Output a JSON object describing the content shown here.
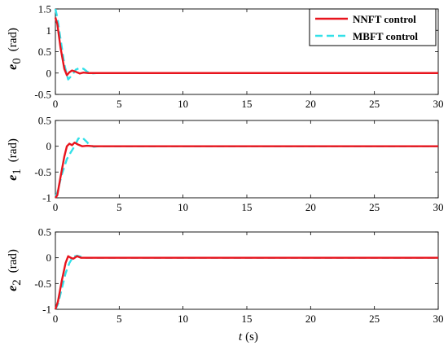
{
  "chart_data": [
    {
      "type": "line",
      "ylabel_symbol": "e",
      "ylabel_subscript": "0",
      "ylabel_unit": "(rad)",
      "xlim": [
        0,
        30
      ],
      "ylim": [
        -0.5,
        1.5
      ],
      "xticks": [
        "0",
        "5",
        "10",
        "15",
        "20",
        "25",
        "30"
      ],
      "yticks": [
        "-0.5",
        "0",
        "0.5",
        "1",
        "1.5"
      ],
      "grid": false,
      "legend": {
        "placement": "top-right",
        "entries": [
          "NNFT control",
          "MBFT control"
        ]
      },
      "series": [
        {
          "name": "NNFT control",
          "color": "#e8141d",
          "style": "solid",
          "x": [
            0,
            0.15,
            0.4,
            0.7,
            0.9,
            1.1,
            1.3,
            1.6,
            1.9,
            2.2,
            2.6,
            3.0,
            30
          ],
          "y": [
            1.3,
            1.15,
            0.6,
            0.1,
            -0.05,
            0.02,
            0.06,
            0.03,
            -0.01,
            0.01,
            0.0,
            0.0,
            0.0
          ]
        },
        {
          "name": "MBFT control",
          "color": "#33e0e8",
          "style": "dashed",
          "x": [
            0,
            0.15,
            0.4,
            0.7,
            1.0,
            1.3,
            1.6,
            1.9,
            2.2,
            2.5,
            2.8,
            3.2,
            30
          ],
          "y": [
            1.5,
            1.3,
            0.8,
            0.2,
            -0.15,
            -0.05,
            0.08,
            0.12,
            0.1,
            0.03,
            -0.01,
            0.0,
            0.0
          ]
        }
      ]
    },
    {
      "type": "line",
      "ylabel_symbol": "e",
      "ylabel_subscript": "1",
      "ylabel_unit": "(rad)",
      "xlim": [
        0,
        30
      ],
      "ylim": [
        -1,
        0.5
      ],
      "xticks": [
        "0",
        "5",
        "10",
        "15",
        "20",
        "25",
        "30"
      ],
      "yticks": [
        "-1",
        "-0.5",
        "0",
        "0.5"
      ],
      "grid": false,
      "series": [
        {
          "name": "NNFT control",
          "color": "#e8141d",
          "style": "solid",
          "x": [
            0,
            0.15,
            0.4,
            0.7,
            0.9,
            1.1,
            1.3,
            1.5,
            1.8,
            2.1,
            2.5,
            3.0,
            30
          ],
          "y": [
            -1.0,
            -0.95,
            -0.6,
            -0.2,
            0.0,
            0.05,
            0.02,
            0.07,
            0.03,
            0.0,
            0.01,
            0.0,
            0.0
          ]
        },
        {
          "name": "MBFT control",
          "color": "#33e0e8",
          "style": "dashed",
          "x": [
            0,
            0.15,
            0.5,
            0.9,
            1.2,
            1.5,
            1.8,
            2.1,
            2.4,
            2.7,
            3.0,
            3.4,
            30
          ],
          "y": [
            -0.98,
            -0.9,
            -0.55,
            -0.25,
            -0.12,
            0.0,
            0.15,
            0.17,
            0.1,
            0.02,
            -0.01,
            0.0,
            0.0
          ]
        }
      ]
    },
    {
      "type": "line",
      "ylabel_symbol": "e",
      "ylabel_subscript": "2",
      "ylabel_unit": "(rad)",
      "xlabel_symbol": "t",
      "xlabel_unit": "(s)",
      "xlim": [
        0,
        30
      ],
      "ylim": [
        -1,
        0.5
      ],
      "xticks": [
        "0",
        "5",
        "10",
        "15",
        "20",
        "25",
        "30"
      ],
      "yticks": [
        "-1",
        "-0.5",
        "0",
        "0.5"
      ],
      "grid": false,
      "series": [
        {
          "name": "NNFT control",
          "color": "#e8141d",
          "style": "solid",
          "x": [
            0,
            0.2,
            0.5,
            0.8,
            1.0,
            1.2,
            1.4,
            1.7,
            2.0,
            2.4,
            30
          ],
          "y": [
            -1.0,
            -0.85,
            -0.45,
            -0.1,
            0.03,
            0.0,
            -0.02,
            0.03,
            0.0,
            0.0,
            0.0
          ]
        },
        {
          "name": "MBFT control",
          "color": "#33e0e8",
          "style": "dashed",
          "x": [
            0,
            0.2,
            0.5,
            0.8,
            1.1,
            1.4,
            1.7,
            2.0,
            2.3,
            2.7,
            30
          ],
          "y": [
            -1.0,
            -0.9,
            -0.6,
            -0.3,
            -0.1,
            0.02,
            0.04,
            0.02,
            0.0,
            0.0,
            0.0
          ]
        }
      ]
    }
  ]
}
